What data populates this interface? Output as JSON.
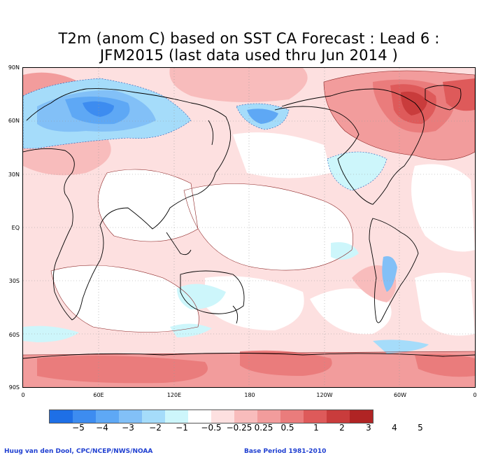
{
  "title": {
    "line1": "T2m (anom C) based on SST CA Forecast : Lead 6 :",
    "line2": "JFM2015 (last data used thru Jun 2014 )"
  },
  "latitude_labels": [
    "90N",
    "60N",
    "30N",
    "EQ",
    "30S",
    "60S",
    "90S"
  ],
  "longitude_labels": [
    "0",
    "60E",
    "120E",
    "180",
    "120W",
    "60W",
    "0"
  ],
  "colorbar": {
    "colors": [
      "#1e6fe6",
      "#3d8cf0",
      "#5ea8f5",
      "#82c0f7",
      "#a5dcfa",
      "#cdf6fb",
      "#ffffff",
      "#fde0e0",
      "#f8bcbc",
      "#f29c9c",
      "#ea7c7c",
      "#de5a5a",
      "#c93c3c",
      "#b02424"
    ],
    "labels": [
      "−5",
      "−4",
      "−3",
      "−2",
      "−1",
      "−0.5",
      "−0.25",
      "0.25",
      "0.5",
      "1",
      "2",
      "3",
      "4",
      "5"
    ]
  },
  "footer": {
    "credit": "Huug van den Dool, CPC/NCEP/NWS/NOAA",
    "base_period": "Base Period 1981-2010"
  }
}
